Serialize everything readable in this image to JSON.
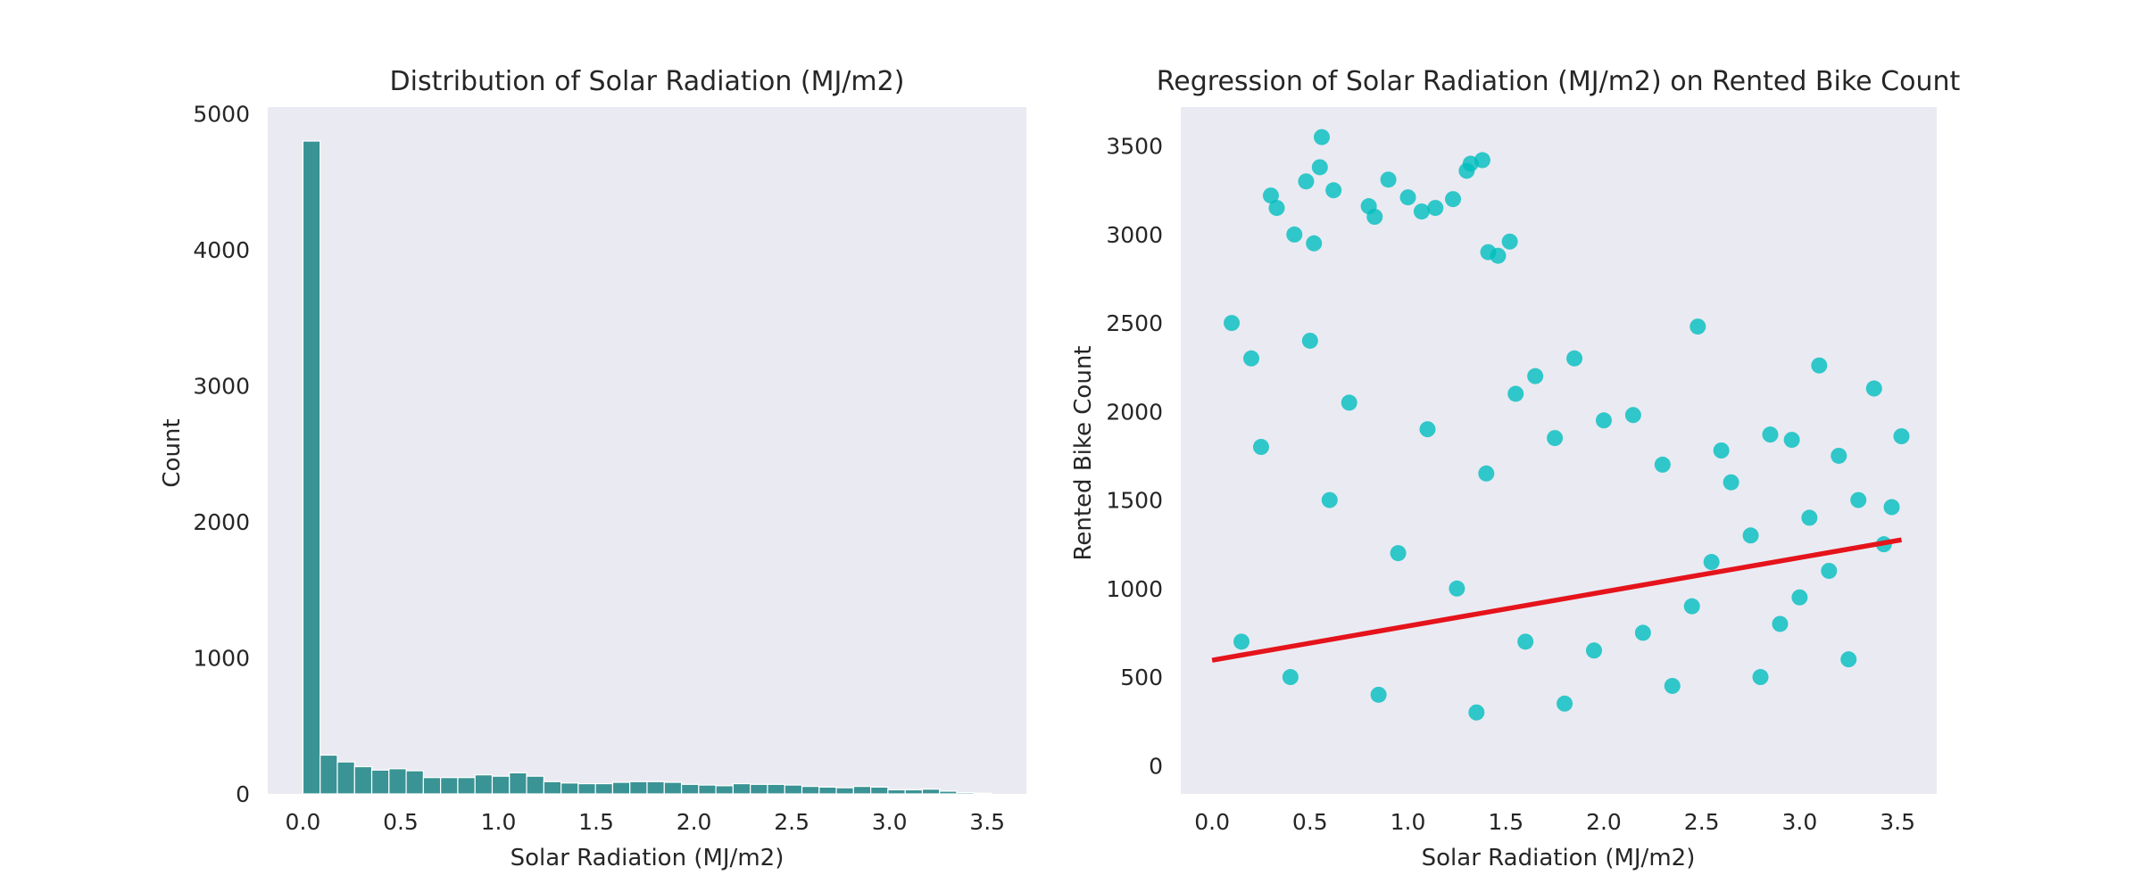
{
  "chart_data": [
    {
      "type": "bar",
      "title": "Distribution of Solar Radiation (MJ/m2)",
      "xlabel": "Solar Radiation (MJ/m2)",
      "ylabel": "Count",
      "xlim": [
        -0.18,
        3.7
      ],
      "ylim": [
        0,
        5050
      ],
      "xticks": [
        0.0,
        0.5,
        1.0,
        1.5,
        2.0,
        2.5,
        3.0,
        3.5
      ],
      "xtick_labels": [
        "0.0",
        "0.5",
        "1.0",
        "1.5",
        "2.0",
        "2.5",
        "3.0",
        "3.5"
      ],
      "yticks": [
        0,
        1000,
        2000,
        3000,
        4000,
        5000
      ],
      "ytick_labels": [
        "0",
        "1000",
        "2000",
        "3000",
        "4000",
        "5000"
      ],
      "grid": false,
      "bar_color": "#3a9394",
      "bin_width": 0.088,
      "bin_starts": [
        0.0,
        0.088,
        0.176,
        0.264,
        0.352,
        0.44,
        0.528,
        0.616,
        0.704,
        0.792,
        0.88,
        0.968,
        1.056,
        1.144,
        1.232,
        1.32,
        1.408,
        1.496,
        1.584,
        1.672,
        1.76,
        1.848,
        1.936,
        2.024,
        2.112,
        2.2,
        2.288,
        2.376,
        2.464,
        2.552,
        2.64,
        2.728,
        2.816,
        2.904,
        2.992,
        3.08,
        3.168,
        3.256,
        3.344,
        3.432
      ],
      "values": [
        4800,
        285,
        235,
        200,
        175,
        185,
        170,
        120,
        120,
        120,
        140,
        130,
        155,
        130,
        90,
        80,
        75,
        75,
        85,
        90,
        90,
        85,
        70,
        65,
        60,
        75,
        70,
        70,
        65,
        55,
        50,
        45,
        55,
        50,
        30,
        30,
        35,
        20,
        10,
        5
      ]
    },
    {
      "type": "scatter",
      "title": "Regression of Solar Radiation (MJ/m2) on Rented Bike Count",
      "xlabel": "Solar Radiation (MJ/m2)",
      "ylabel": "Rented Bike Count",
      "xlim": [
        -0.16,
        3.7
      ],
      "ylim": [
        -160,
        3720
      ],
      "xticks": [
        0.0,
        0.5,
        1.0,
        1.5,
        2.0,
        2.5,
        3.0,
        3.5
      ],
      "xtick_labels": [
        "0.0",
        "0.5",
        "1.0",
        "1.5",
        "2.0",
        "2.5",
        "3.0",
        "3.5"
      ],
      "yticks": [
        0,
        500,
        1000,
        1500,
        2000,
        2500,
        3000,
        3500
      ],
      "ytick_labels": [
        "0",
        "500",
        "1000",
        "1500",
        "2000",
        "2500",
        "3000",
        "3500"
      ],
      "grid": false,
      "point_color": "#00bebe",
      "line_color": "#e5131b",
      "regression_line": {
        "x": [
          0.0,
          3.52
        ],
        "y": [
          595,
          1275
        ]
      },
      "points": {
        "x": [
          0.56,
          0.48,
          0.55,
          0.3,
          0.33,
          0.9,
          1.38,
          1.32,
          1.3,
          1.23,
          1.14,
          1.07,
          1.0,
          0.8,
          0.83,
          0.62,
          0.42,
          0.52,
          1.46,
          1.41,
          1.52,
          2.48,
          3.1,
          3.38,
          3.52,
          2.85,
          2.96,
          2.6,
          2.15,
          1.85,
          1.65,
          1.55,
          2.65,
          3.47,
          3.3,
          3.2,
          3.05,
          2.75,
          2.55,
          2.3,
          2.0,
          1.75,
          1.4,
          1.1,
          0.7,
          0.5,
          0.2,
          0.1,
          3.43,
          3.15,
          3.0,
          2.9,
          2.45,
          2.2,
          1.95,
          1.6,
          1.25,
          0.95,
          0.6,
          0.25,
          3.25,
          2.8,
          2.35,
          1.8,
          1.35,
          0.85,
          0.4,
          0.15
        ],
        "y": [
          3550,
          3300,
          3380,
          3220,
          3150,
          3310,
          3420,
          3400,
          3360,
          3200,
          3150,
          3130,
          3210,
          3160,
          3100,
          3250,
          3000,
          2950,
          2880,
          2900,
          2960,
          2480,
          2260,
          2130,
          1860,
          1870,
          1840,
          1780,
          1980,
          2300,
          2200,
          2100,
          1600,
          1460,
          1500,
          1750,
          1400,
          1300,
          1150,
          1700,
          1950,
          1850,
          1650,
          1900,
          2050,
          2400,
          2300,
          2500,
          1250,
          1100,
          950,
          800,
          900,
          750,
          650,
          700,
          1000,
          1200,
          1500,
          1800,
          600,
          500,
          450,
          350,
          300,
          400,
          500,
          700
        ]
      }
    }
  ]
}
